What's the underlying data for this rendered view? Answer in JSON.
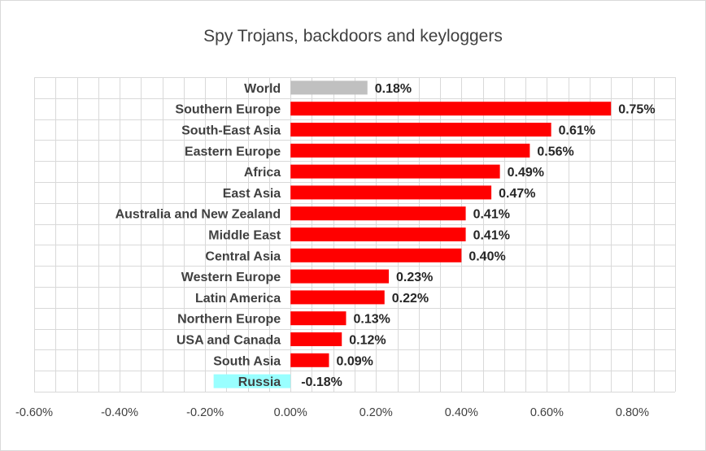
{
  "chart_data": {
    "type": "bar",
    "orientation": "horizontal",
    "title": "Spy Trojans, backdoors and keyloggers",
    "xlabel": "",
    "ylabel": "",
    "xlim": [
      -0.006,
      0.009
    ],
    "x_ticks": [
      -0.006,
      -0.004,
      -0.002,
      0.0,
      0.002,
      0.004,
      0.006,
      0.008
    ],
    "x_tick_labels": [
      "-0.60%",
      "-0.40%",
      "-0.20%",
      "0.00%",
      "0.20%",
      "0.40%",
      "0.60%",
      "0.80%"
    ],
    "grid": true,
    "legend": "none",
    "categories": [
      "World",
      "Southern Europe",
      "South-East Asia",
      "Eastern Europe",
      "Africa",
      "East Asia",
      "Australia and New Zealand",
      "Middle East",
      "Central Asia",
      "Western Europe",
      "Latin America",
      "Northern Europe",
      "USA and Canada",
      "South Asia",
      "Russia"
    ],
    "values": [
      0.0018,
      0.0075,
      0.0061,
      0.0056,
      0.0049,
      0.0047,
      0.0041,
      0.0041,
      0.004,
      0.0023,
      0.0022,
      0.0013,
      0.0012,
      0.0009,
      -0.0018
    ],
    "value_labels": [
      "0.18%",
      "0.75%",
      "0.61%",
      "0.56%",
      "0.49%",
      "0.47%",
      "0.41%",
      "0.41%",
      "0.40%",
      "0.23%",
      "0.22%",
      "0.13%",
      "0.12%",
      "0.09%",
      "-0.18%"
    ],
    "colors": {
      "World": "#c0c0c0",
      "Russia": "#99ffff",
      "default": "#ff0000"
    }
  }
}
